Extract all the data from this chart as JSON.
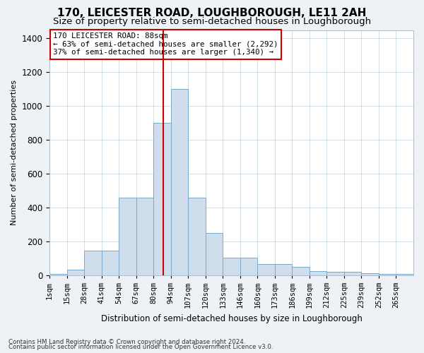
{
  "title": "170, LEICESTER ROAD, LOUGHBOROUGH, LE11 2AH",
  "subtitle": "Size of property relative to semi-detached houses in Loughborough",
  "xlabel": "Distribution of semi-detached houses by size in Loughborough",
  "ylabel": "Number of semi-detached properties",
  "footnote1": "Contains HM Land Registry data © Crown copyright and database right 2024.",
  "footnote2": "Contains public sector information licensed under the Open Government Licence v3.0.",
  "bar_labels": [
    "1sqm",
    "15sqm",
    "28sqm",
    "41sqm",
    "54sqm",
    "67sqm",
    "80sqm",
    "94sqm",
    "107sqm",
    "120sqm",
    "133sqm",
    "146sqm",
    "160sqm",
    "173sqm",
    "186sqm",
    "199sqm",
    "212sqm",
    "225sqm",
    "239sqm",
    "252sqm",
    "265sqm"
  ],
  "bar_values": [
    8,
    30,
    145,
    145,
    460,
    460,
    900,
    1100,
    460,
    250,
    105,
    105,
    65,
    65,
    50,
    25,
    20,
    20,
    10,
    8,
    5
  ],
  "bar_color": "#cfdded",
  "bar_edge_color": "#7aaac8",
  "vline_x": 7,
  "vline_color": "#cc0000",
  "annotation_text": "170 LEICESTER ROAD: 88sqm\n← 63% of semi-detached houses are smaller (2,292)\n37% of semi-detached houses are larger (1,340) →",
  "annotation_box_color": "#ffffff",
  "annotation_box_edge": "#cc0000",
  "ylim": [
    0,
    1450
  ],
  "yticks": [
    0,
    200,
    400,
    600,
    800,
    1000,
    1200,
    1400
  ],
  "background_color": "#eef2f7",
  "plot_bg_color": "#ffffff",
  "title_fontsize": 11,
  "subtitle_fontsize": 9.5
}
